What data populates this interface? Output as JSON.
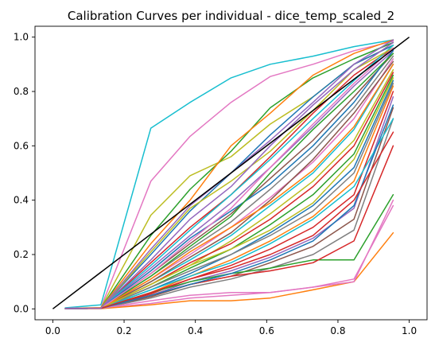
{
  "chart_data": {
    "type": "line",
    "title": "Calibration Curves per individual - dice_temp_scaled_2",
    "xlabel": "",
    "ylabel": "",
    "xlim": [
      -0.05,
      1.05
    ],
    "ylim": [
      -0.04,
      1.04
    ],
    "xticks": [
      0.0,
      0.2,
      0.4,
      0.6,
      0.8,
      1.0
    ],
    "yticks": [
      0.0,
      0.2,
      0.4,
      0.6,
      0.8,
      1.0
    ],
    "xtick_labels": [
      "0.0",
      "0.2",
      "0.4",
      "0.6",
      "0.8",
      "1.0"
    ],
    "ytick_labels": [
      "0.0",
      "0.2",
      "0.4",
      "0.6",
      "0.8",
      "1.0"
    ],
    "grid": false,
    "legend": "none",
    "reference_line": {
      "x": [
        0.0,
        1.0
      ],
      "y": [
        0.0,
        1.0
      ],
      "color": "#000000"
    },
    "x": [
      0.035,
      0.135,
      0.275,
      0.385,
      0.5,
      0.61,
      0.73,
      0.845,
      0.955
    ],
    "series": [
      {
        "color": "#17becf",
        "values": [
          0.004,
          0.015,
          0.665,
          0.76,
          0.85,
          0.9,
          0.93,
          0.965,
          0.99
        ]
      },
      {
        "color": "#e377c2",
        "values": [
          0.002,
          0.005,
          0.47,
          0.635,
          0.76,
          0.855,
          0.9,
          0.95,
          0.985
        ]
      },
      {
        "color": "#bcbd22",
        "values": [
          0.001,
          0.004,
          0.345,
          0.49,
          0.56,
          0.68,
          0.78,
          0.9,
          0.97
        ]
      },
      {
        "color": "#2ca02c",
        "values": [
          0.001,
          0.003,
          0.27,
          0.44,
          0.58,
          0.74,
          0.85,
          0.92,
          0.98
        ]
      },
      {
        "color": "#ff7f0e",
        "values": [
          0.001,
          0.003,
          0.24,
          0.4,
          0.6,
          0.72,
          0.86,
          0.94,
          0.99
        ]
      },
      {
        "color": "#1f77b4",
        "values": [
          0.001,
          0.002,
          0.2,
          0.36,
          0.5,
          0.64,
          0.78,
          0.9,
          0.97
        ]
      },
      {
        "color": "#d62728",
        "values": [
          0.001,
          0.002,
          0.17,
          0.3,
          0.42,
          0.56,
          0.72,
          0.86,
          0.96
        ]
      },
      {
        "color": "#9467bd",
        "values": [
          0.001,
          0.002,
          0.15,
          0.27,
          0.39,
          0.52,
          0.67,
          0.82,
          0.95
        ]
      },
      {
        "color": "#8c564b",
        "values": [
          0.001,
          0.002,
          0.13,
          0.24,
          0.35,
          0.48,
          0.62,
          0.78,
          0.94
        ]
      },
      {
        "color": "#7f7f7f",
        "values": [
          0.001,
          0.002,
          0.12,
          0.22,
          0.32,
          0.44,
          0.58,
          0.74,
          0.93
        ]
      },
      {
        "color": "#e377c2",
        "values": [
          0.001,
          0.002,
          0.11,
          0.2,
          0.3,
          0.41,
          0.54,
          0.7,
          0.92
        ]
      },
      {
        "color": "#17becf",
        "values": [
          0.001,
          0.002,
          0.1,
          0.18,
          0.27,
          0.38,
          0.5,
          0.66,
          0.9
        ]
      },
      {
        "color": "#bcbd22",
        "values": [
          0.001,
          0.002,
          0.09,
          0.16,
          0.25,
          0.35,
          0.47,
          0.62,
          0.88
        ]
      },
      {
        "color": "#2ca02c",
        "values": [
          0.001,
          0.002,
          0.08,
          0.15,
          0.22,
          0.31,
          0.42,
          0.57,
          0.86
        ]
      },
      {
        "color": "#1f77b4",
        "values": [
          0.001,
          0.002,
          0.07,
          0.13,
          0.2,
          0.28,
          0.38,
          0.52,
          0.84
        ]
      },
      {
        "color": "#ff7f0e",
        "values": [
          0.001,
          0.002,
          0.06,
          0.12,
          0.18,
          0.25,
          0.34,
          0.47,
          0.82
        ]
      },
      {
        "color": "#d62728",
        "values": [
          0.001,
          0.002,
          0.055,
          0.11,
          0.16,
          0.22,
          0.3,
          0.42,
          0.8
        ]
      },
      {
        "color": "#9467bd",
        "values": [
          0.001,
          0.002,
          0.05,
          0.1,
          0.14,
          0.19,
          0.26,
          0.37,
          0.78
        ]
      },
      {
        "color": "#8c564b",
        "values": [
          0.001,
          0.002,
          0.045,
          0.09,
          0.12,
          0.17,
          0.23,
          0.33,
          0.74
        ]
      },
      {
        "color": "#7f7f7f",
        "values": [
          0.001,
          0.002,
          0.04,
          0.08,
          0.11,
          0.15,
          0.2,
          0.29,
          0.7
        ]
      },
      {
        "color": "#2ca02c",
        "values": [
          0.001,
          0.002,
          0.06,
          0.1,
          0.13,
          0.15,
          0.18,
          0.18,
          0.42
        ]
      },
      {
        "color": "#d62728",
        "values": [
          0.001,
          0.002,
          0.05,
          0.09,
          0.12,
          0.14,
          0.17,
          0.25,
          0.6
        ]
      },
      {
        "color": "#e377c2",
        "values": [
          0.001,
          0.002,
          0.02,
          0.04,
          0.05,
          0.06,
          0.08,
          0.11,
          0.38
        ]
      },
      {
        "color": "#ff7f0e",
        "values": [
          0.0,
          0.001,
          0.015,
          0.03,
          0.03,
          0.04,
          0.07,
          0.1,
          0.28
        ]
      },
      {
        "color": "#e377c2",
        "values": [
          0.001,
          0.002,
          0.03,
          0.05,
          0.06,
          0.06,
          0.08,
          0.1,
          0.4
        ]
      },
      {
        "color": "#17becf",
        "values": [
          0.001,
          0.002,
          0.16,
          0.29,
          0.42,
          0.55,
          0.7,
          0.84,
          0.97
        ]
      },
      {
        "color": "#bcbd22",
        "values": [
          0.001,
          0.002,
          0.21,
          0.37,
          0.47,
          0.58,
          0.73,
          0.88,
          0.96
        ]
      },
      {
        "color": "#1f77b4",
        "values": [
          0.001,
          0.002,
          0.14,
          0.26,
          0.36,
          0.46,
          0.6,
          0.76,
          0.95
        ]
      },
      {
        "color": "#9467bd",
        "values": [
          0.001,
          0.002,
          0.18,
          0.33,
          0.45,
          0.6,
          0.75,
          0.88,
          0.98
        ]
      },
      {
        "color": "#8c564b",
        "values": [
          0.001,
          0.002,
          0.1,
          0.19,
          0.28,
          0.4,
          0.55,
          0.72,
          0.91
        ]
      },
      {
        "color": "#2ca02c",
        "values": [
          0.001,
          0.002,
          0.12,
          0.23,
          0.34,
          0.5,
          0.66,
          0.8,
          0.94
        ]
      },
      {
        "color": "#d62728",
        "values": [
          0.001,
          0.002,
          0.09,
          0.17,
          0.24,
          0.33,
          0.45,
          0.6,
          0.87
        ]
      },
      {
        "color": "#ff7f0e",
        "values": [
          0.001,
          0.002,
          0.11,
          0.21,
          0.3,
          0.39,
          0.51,
          0.67,
          0.9
        ]
      },
      {
        "color": "#7f7f7f",
        "values": [
          0.001,
          0.002,
          0.08,
          0.14,
          0.2,
          0.27,
          0.36,
          0.5,
          0.83
        ]
      },
      {
        "color": "#e377c2",
        "values": [
          0.001,
          0.002,
          0.13,
          0.25,
          0.37,
          0.52,
          0.68,
          0.83,
          0.96
        ]
      },
      {
        "color": "#17becf",
        "values": [
          0.001,
          0.002,
          0.07,
          0.12,
          0.17,
          0.24,
          0.33,
          0.45,
          0.7
        ]
      },
      {
        "color": "#bcbd22",
        "values": [
          0.001,
          0.002,
          0.09,
          0.16,
          0.22,
          0.29,
          0.39,
          0.55,
          0.85
        ]
      },
      {
        "color": "#1f77b4",
        "values": [
          0.001,
          0.002,
          0.05,
          0.09,
          0.13,
          0.18,
          0.25,
          0.38,
          0.75
        ]
      },
      {
        "color": "#d62728",
        "values": [
          0.001,
          0.002,
          0.06,
          0.11,
          0.15,
          0.2,
          0.27,
          0.4,
          0.65
        ]
      },
      {
        "color": "#9467bd",
        "values": [
          0.001,
          0.002,
          0.22,
          0.38,
          0.5,
          0.62,
          0.76,
          0.9,
          0.99
        ]
      }
    ]
  }
}
